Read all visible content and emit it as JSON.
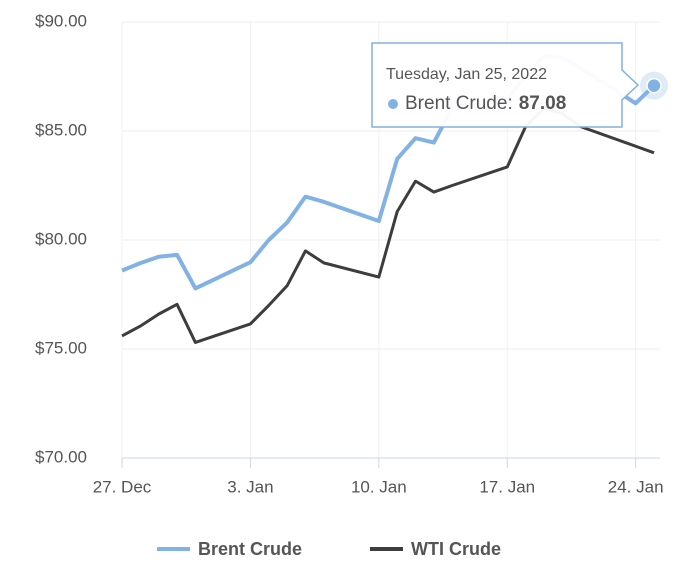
{
  "chart_data": {
    "type": "line",
    "x": [
      "27. Dec",
      "28. Dec",
      "29. Dec",
      "30. Dec",
      "31. Dec",
      "3. Jan",
      "4. Jan",
      "5. Jan",
      "6. Jan",
      "7. Jan",
      "10. Jan",
      "11. Jan",
      "12. Jan",
      "13. Jan",
      "14. Jan",
      "17. Jan",
      "18. Jan",
      "19. Jan",
      "20. Jan",
      "21. Jan",
      "24. Jan",
      "25. Jan"
    ],
    "xticks": [
      "27. Dec",
      "3. Jan",
      "10. Jan",
      "17. Jan",
      "24. Jan"
    ],
    "ylim": [
      70,
      90
    ],
    "yticks": [
      {
        "value": 70,
        "label": "$70.00"
      },
      {
        "value": 75,
        "label": "$75.00"
      },
      {
        "value": 80,
        "label": "$80.00"
      },
      {
        "value": 85,
        "label": "$85.00"
      },
      {
        "value": 90,
        "label": "$90.00"
      }
    ],
    "grid": true,
    "legend": "bottom",
    "series": [
      {
        "name": "Brent Crude",
        "color": "#82b1e4",
        "values": [
          78.6,
          78.94,
          79.23,
          79.32,
          77.78,
          78.98,
          80.0,
          80.8,
          81.99,
          81.75,
          80.87,
          83.72,
          84.67,
          84.47,
          86.06,
          86.48,
          87.51,
          88.44,
          88.38,
          87.89,
          86.27,
          87.08
        ]
      },
      {
        "name": "WTI Crude",
        "color": "#3d3d3f",
        "values": [
          75.6,
          76.05,
          76.6,
          77.05,
          75.3,
          76.15,
          77.0,
          77.9,
          79.5,
          78.95,
          78.3,
          81.3,
          82.7,
          82.2,
          82.5,
          83.35,
          85.2,
          86.05,
          85.8,
          85.2,
          84.3,
          84.0
        ]
      }
    ],
    "tooltip": {
      "date": "Tuesday, Jan 25, 2022",
      "label": "Brent Crude:"
    }
  }
}
